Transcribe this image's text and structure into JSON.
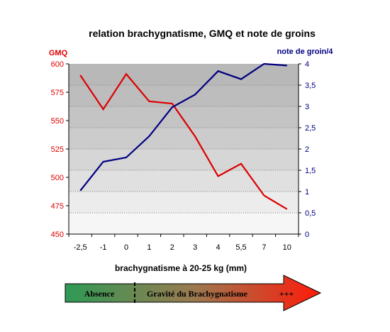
{
  "chart_data": {
    "type": "line",
    "title": "relation brachygnatisme, GMQ et note de groins",
    "xlabel": "brachygnatisme à 20-25 kg (mm)",
    "categories": [
      "-2,5",
      "-1",
      "0",
      "1",
      "2",
      "3",
      "4",
      "5,5",
      "7",
      "10"
    ],
    "y_left": {
      "label": "GMQ",
      "range": [
        450,
        600
      ],
      "ticks": [
        "450",
        "475",
        "500",
        "525",
        "550",
        "575",
        "600"
      ],
      "color": "#dd0000"
    },
    "y_right": {
      "label": "note de groin/4",
      "range": [
        0,
        4
      ],
      "ticks": [
        "0",
        "0,5",
        "1",
        "1,5",
        "2",
        "2,5",
        "3",
        "3,5",
        "4"
      ],
      "color": "#000080"
    },
    "series": [
      {
        "axis": "left",
        "color": "#dd0000",
        "values": [
          590,
          560,
          591,
          567,
          565,
          536,
          501,
          512,
          484,
          472
        ]
      },
      {
        "axis": "right",
        "color": "#000080",
        "values": [
          1.02,
          1.7,
          1.8,
          2.3,
          2.98,
          3.28,
          3.83,
          3.64,
          4.0,
          3.96
        ]
      }
    ],
    "grid": true,
    "background": "gradient gray (dark top to light bottom)"
  },
  "arrow": {
    "left_label": "Absence",
    "center_label": "Gravité du Brachygnatisme",
    "right_label": "+++"
  }
}
